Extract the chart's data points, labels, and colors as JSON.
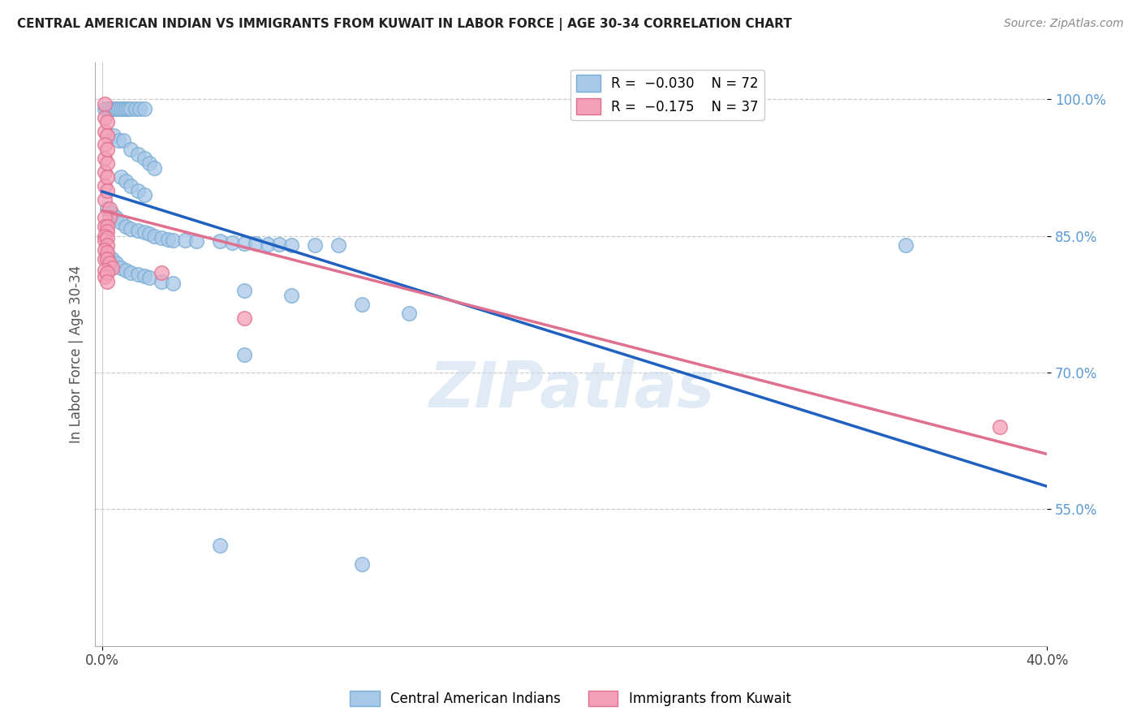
{
  "title": "CENTRAL AMERICAN INDIAN VS IMMIGRANTS FROM KUWAIT IN LABOR FORCE | AGE 30-34 CORRELATION CHART",
  "source": "Source: ZipAtlas.com",
  "ylabel": "In Labor Force | Age 30-34",
  "xlim": [
    0.0,
    0.4
  ],
  "ylim": [
    0.4,
    1.04
  ],
  "ytick_positions": [
    0.55,
    0.7,
    0.85,
    1.0
  ],
  "ytick_labels": [
    "55.0%",
    "70.0%",
    "85.0%",
    "100.0%"
  ],
  "watermark": "ZIPatlas",
  "blue_color": "#a8c8e8",
  "blue_edge": "#7aaed4",
  "pink_color": "#f4a0b8",
  "pink_edge": "#e07090",
  "blue_line_color": "#2060c0",
  "pink_line_color": "#e07090",
  "blue_scatter": [
    [
      0.001,
      0.99
    ],
    [
      0.002,
      0.99
    ],
    [
      0.003,
      0.99
    ],
    [
      0.004,
      0.99
    ],
    [
      0.005,
      0.99
    ],
    [
      0.006,
      0.99
    ],
    [
      0.007,
      0.99
    ],
    [
      0.008,
      0.99
    ],
    [
      0.009,
      0.99
    ],
    [
      0.01,
      0.99
    ],
    [
      0.011,
      0.99
    ],
    [
      0.012,
      0.99
    ],
    [
      0.014,
      0.99
    ],
    [
      0.016,
      0.99
    ],
    [
      0.018,
      0.99
    ],
    [
      0.005,
      0.96
    ],
    [
      0.007,
      0.955
    ],
    [
      0.009,
      0.955
    ],
    [
      0.012,
      0.945
    ],
    [
      0.015,
      0.94
    ],
    [
      0.018,
      0.935
    ],
    [
      0.02,
      0.93
    ],
    [
      0.022,
      0.925
    ],
    [
      0.008,
      0.915
    ],
    [
      0.01,
      0.91
    ],
    [
      0.012,
      0.905
    ],
    [
      0.015,
      0.9
    ],
    [
      0.018,
      0.895
    ],
    [
      0.002,
      0.88
    ],
    [
      0.004,
      0.875
    ],
    [
      0.006,
      0.87
    ],
    [
      0.008,
      0.865
    ],
    [
      0.01,
      0.86
    ],
    [
      0.012,
      0.858
    ],
    [
      0.015,
      0.856
    ],
    [
      0.018,
      0.854
    ],
    [
      0.02,
      0.852
    ],
    [
      0.022,
      0.85
    ],
    [
      0.025,
      0.848
    ],
    [
      0.028,
      0.846
    ],
    [
      0.03,
      0.845
    ],
    [
      0.035,
      0.845
    ],
    [
      0.04,
      0.844
    ],
    [
      0.05,
      0.844
    ],
    [
      0.055,
      0.843
    ],
    [
      0.06,
      0.842
    ],
    [
      0.065,
      0.842
    ],
    [
      0.07,
      0.841
    ],
    [
      0.075,
      0.841
    ],
    [
      0.08,
      0.84
    ],
    [
      0.09,
      0.84
    ],
    [
      0.1,
      0.84
    ],
    [
      0.002,
      0.83
    ],
    [
      0.004,
      0.825
    ],
    [
      0.006,
      0.82
    ],
    [
      0.008,
      0.815
    ],
    [
      0.01,
      0.812
    ],
    [
      0.012,
      0.81
    ],
    [
      0.015,
      0.808
    ],
    [
      0.018,
      0.806
    ],
    [
      0.02,
      0.804
    ],
    [
      0.025,
      0.8
    ],
    [
      0.03,
      0.798
    ],
    [
      0.06,
      0.79
    ],
    [
      0.08,
      0.785
    ],
    [
      0.11,
      0.775
    ],
    [
      0.13,
      0.765
    ],
    [
      0.06,
      0.72
    ],
    [
      0.34,
      0.84
    ],
    [
      0.05,
      0.51
    ],
    [
      0.11,
      0.49
    ]
  ],
  "pink_scatter": [
    [
      0.001,
      0.995
    ],
    [
      0.001,
      0.98
    ],
    [
      0.001,
      0.965
    ],
    [
      0.002,
      0.975
    ],
    [
      0.002,
      0.96
    ],
    [
      0.001,
      0.95
    ],
    [
      0.001,
      0.935
    ],
    [
      0.001,
      0.92
    ],
    [
      0.002,
      0.945
    ],
    [
      0.002,
      0.93
    ],
    [
      0.001,
      0.905
    ],
    [
      0.001,
      0.89
    ],
    [
      0.002,
      0.915
    ],
    [
      0.002,
      0.9
    ],
    [
      0.003,
      0.88
    ],
    [
      0.003,
      0.87
    ],
    [
      0.001,
      0.87
    ],
    [
      0.001,
      0.86
    ],
    [
      0.002,
      0.86
    ],
    [
      0.002,
      0.855
    ],
    [
      0.001,
      0.85
    ],
    [
      0.001,
      0.845
    ],
    [
      0.002,
      0.848
    ],
    [
      0.002,
      0.84
    ],
    [
      0.001,
      0.835
    ],
    [
      0.001,
      0.825
    ],
    [
      0.002,
      0.832
    ],
    [
      0.002,
      0.825
    ],
    [
      0.003,
      0.82
    ],
    [
      0.004,
      0.815
    ],
    [
      0.001,
      0.812
    ],
    [
      0.001,
      0.805
    ],
    [
      0.002,
      0.81
    ],
    [
      0.002,
      0.8
    ],
    [
      0.025,
      0.81
    ],
    [
      0.06,
      0.76
    ],
    [
      0.38,
      0.64
    ]
  ]
}
